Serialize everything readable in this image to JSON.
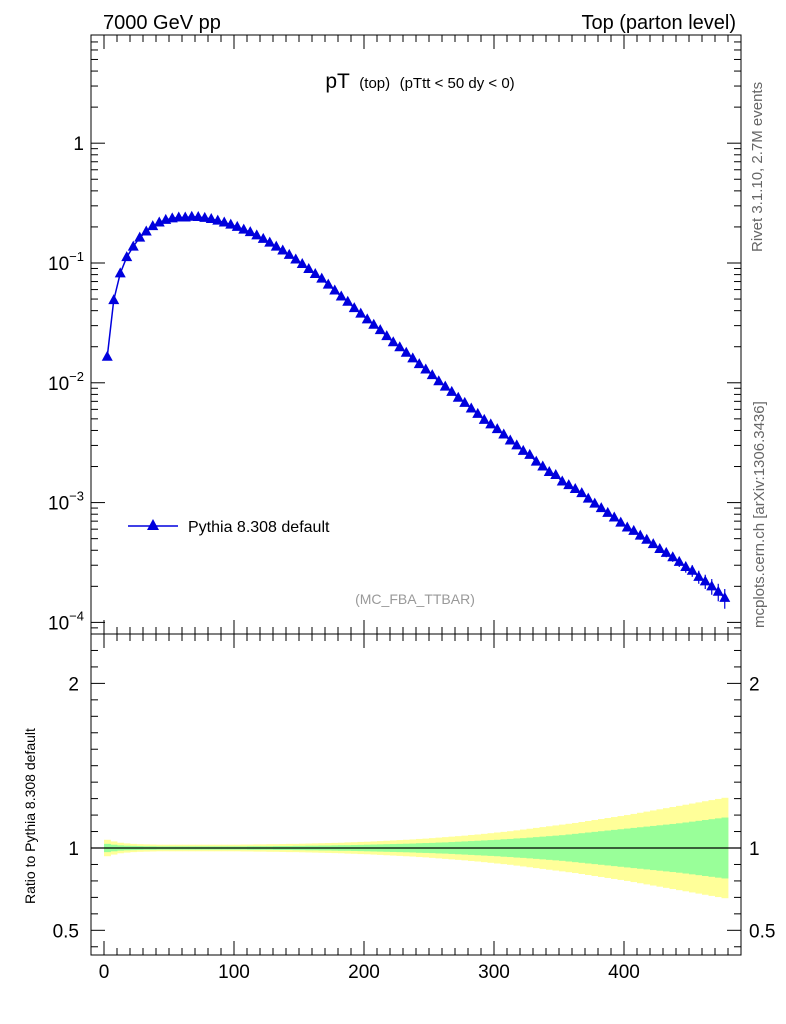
{
  "header": {
    "left": "7000 GeV pp",
    "right": "Top (parton level)"
  },
  "title": {
    "main": "pT",
    "sub1": "(top)",
    "sub2": "(pTtt < 50 dy < 0)"
  },
  "side": {
    "rivet": "Rivet 3.1.10,  2.7M events",
    "mcplots": "mcplots.cern.ch [arXiv:1306.3436]"
  },
  "analysis": "(MC_FBA_TTBAR)",
  "ratio_ylabel": "Ratio to Pythia 8.308 default",
  "colors": {
    "series": "#0000dd",
    "band_inner": "#99ff99",
    "band_outer": "#ffff99",
    "muted": "#999999",
    "side_text": "#666666"
  },
  "chart_data": [
    {
      "type": "line",
      "yscale": "log",
      "xlim": [
        -10,
        490
      ],
      "ylim": [
        8e-05,
        8
      ],
      "ytick_labels": [
        {
          "base": "1",
          "exp": ""
        },
        {
          "base": "10",
          "exp": "−1"
        },
        {
          "base": "10",
          "exp": "−2"
        },
        {
          "base": "10",
          "exp": "−3"
        },
        {
          "base": "10",
          "exp": "−4"
        }
      ],
      "ytick_values": [
        1,
        0.1,
        0.01,
        0.001,
        0.0001
      ],
      "legend": {
        "label": "Pythia 8.308 default",
        "position": "lower-left"
      },
      "series": [
        {
          "name": "Pythia 8.308 default",
          "x": [
            2.5,
            7.5,
            12.5,
            17.5,
            22.5,
            27.5,
            32.5,
            37.5,
            42.5,
            47.5,
            52.5,
            57.5,
            62.5,
            67.5,
            72.5,
            77.5,
            82.5,
            87.5,
            92.5,
            97.5,
            102.5,
            107.5,
            112.5,
            117.5,
            122.5,
            127.5,
            132.5,
            137.5,
            142.5,
            147.5,
            152.5,
            157.5,
            162.5,
            167.5,
            172.5,
            177.5,
            182.5,
            187.5,
            192.5,
            197.5,
            202.5,
            207.5,
            212.5,
            217.5,
            222.5,
            227.5,
            232.5,
            237.5,
            242.5,
            247.5,
            252.5,
            257.5,
            262.5,
            267.5,
            272.5,
            277.5,
            282.5,
            287.5,
            292.5,
            297.5,
            302.5,
            307.5,
            312.5,
            317.5,
            322.5,
            327.5,
            332.5,
            337.5,
            342.5,
            347.5,
            352.5,
            357.5,
            362.5,
            367.5,
            372.5,
            377.5,
            382.5,
            387.5,
            392.5,
            397.5,
            402.5,
            407.5,
            412.5,
            417.5,
            422.5,
            427.5,
            432.5,
            437.5,
            442.5,
            447.5,
            452.5,
            457.5,
            462.5,
            467.5,
            472.5,
            477.5
          ],
          "y": [
            0.0165,
            0.049,
            0.082,
            0.112,
            0.137,
            0.163,
            0.183,
            0.203,
            0.218,
            0.229,
            0.236,
            0.24,
            0.24,
            0.243,
            0.242,
            0.238,
            0.233,
            0.226,
            0.218,
            0.209,
            0.2,
            0.19,
            0.181,
            0.17,
            0.159,
            0.148,
            0.137,
            0.127,
            0.117,
            0.107,
            0.098,
            0.089,
            0.081,
            0.074,
            0.066,
            0.059,
            0.0525,
            0.0475,
            0.042,
            0.0378,
            0.0338,
            0.0305,
            0.0275,
            0.0245,
            0.0218,
            0.0198,
            0.0178,
            0.016,
            0.0143,
            0.0129,
            0.0116,
            0.0103,
            0.0093,
            0.0084,
            0.0075,
            0.0068,
            0.0061,
            0.0055,
            0.0049,
            0.0045,
            0.0041,
            0.0037,
            0.0033,
            0.003,
            0.0027,
            0.0025,
            0.0022,
            0.002,
            0.0018,
            0.0017,
            0.0015,
            0.0014,
            0.0013,
            0.0012,
            0.00108,
            0.00098,
            0.0009,
            0.00082,
            0.00075,
            0.00068,
            0.00062,
            0.00058,
            0.00053,
            0.00049,
            0.00045,
            0.00041,
            0.00038,
            0.00035,
            0.00032,
            0.00029,
            0.00027,
            0.00024,
            0.00022,
            0.0002,
            0.00018,
            0.00016
          ],
          "yerr": [
            0.0003,
            0.0006,
            0.0008,
            0.0009,
            0.001,
            0.0011,
            0.0011,
            0.0012,
            0.0012,
            0.0012,
            0.0012,
            0.0012,
            0.0012,
            0.0012,
            0.0012,
            0.0012,
            0.0012,
            0.0012,
            0.0012,
            0.0011,
            0.0011,
            0.0011,
            0.0011,
            0.001,
            0.001,
            0.001,
            0.001,
            0.0009,
            0.0009,
            0.0009,
            0.0008,
            0.0008,
            0.0007,
            0.0007,
            0.0007,
            0.0006,
            0.0006,
            0.0005,
            0.0005,
            0.0005,
            0.0004,
            0.0004,
            0.0004,
            0.0004,
            0.0003,
            0.0003,
            0.0003,
            0.0003,
            0.0003,
            0.0002,
            0.0002,
            0.0002,
            0.0002,
            0.0002,
            0.0002,
            0.00018,
            0.00016,
            0.00015,
            0.00014,
            0.00013,
            0.00012,
            0.00011,
            0.0001,
            0.0001,
            9e-05,
            9e-05,
            8e-05,
            8e-05,
            7e-05,
            7e-05,
            6e-05,
            6e-05,
            6e-05,
            5e-05,
            5e-05,
            5e-05,
            5e-05,
            4e-05,
            4e-05,
            4e-05,
            4e-05,
            4e-05,
            4e-05,
            3e-05,
            3e-05,
            3e-05,
            3e-05,
            3e-05,
            3e-05,
            3e-05,
            3e-05,
            3e-05,
            3e-05,
            3e-05,
            3e-05,
            3e-05
          ]
        }
      ]
    },
    {
      "type": "area",
      "ylabel": "Ratio to Pythia 8.308 default",
      "xlim": [
        -10,
        490
      ],
      "ylim": [
        0.35,
        2.3
      ],
      "xtick_values": [
        0,
        100,
        200,
        300,
        400
      ],
      "xtick_labels": [
        "0",
        "100",
        "200",
        "300",
        "400"
      ],
      "ytick_values": [
        2,
        1,
        0.5
      ],
      "ytick_labels": [
        "2",
        "1",
        "0.5"
      ],
      "reference_line": 1,
      "bands": {
        "x_edges_start": 0,
        "bin_width": 5,
        "inner_halfwidth": [
          0.025,
          0.02,
          0.016,
          0.014,
          0.013,
          0.012,
          0.011,
          0.011,
          0.01,
          0.01,
          0.01,
          0.01,
          0.01,
          0.01,
          0.01,
          0.01,
          0.01,
          0.01,
          0.01,
          0.01,
          0.01,
          0.01,
          0.011,
          0.011,
          0.011,
          0.011,
          0.012,
          0.012,
          0.012,
          0.013,
          0.013,
          0.014,
          0.014,
          0.015,
          0.015,
          0.016,
          0.017,
          0.017,
          0.018,
          0.019,
          0.02,
          0.021,
          0.022,
          0.023,
          0.024,
          0.025,
          0.026,
          0.027,
          0.029,
          0.03,
          0.031,
          0.033,
          0.034,
          0.036,
          0.038,
          0.04,
          0.042,
          0.044,
          0.046,
          0.048,
          0.05,
          0.053,
          0.055,
          0.058,
          0.06,
          0.063,
          0.066,
          0.069,
          0.072,
          0.075,
          0.078,
          0.082,
          0.086,
          0.09,
          0.094,
          0.098,
          0.102,
          0.106,
          0.11,
          0.114,
          0.118,
          0.122,
          0.126,
          0.13,
          0.134,
          0.138,
          0.142,
          0.146,
          0.15,
          0.155,
          0.16,
          0.165,
          0.17,
          0.175,
          0.18,
          0.185
        ],
        "outer_halfwidth": [
          0.05,
          0.04,
          0.032,
          0.028,
          0.025,
          0.023,
          0.022,
          0.021,
          0.02,
          0.02,
          0.02,
          0.02,
          0.02,
          0.02,
          0.02,
          0.02,
          0.02,
          0.02,
          0.02,
          0.02,
          0.02,
          0.021,
          0.021,
          0.022,
          0.022,
          0.023,
          0.023,
          0.024,
          0.025,
          0.025,
          0.026,
          0.027,
          0.028,
          0.029,
          0.03,
          0.031,
          0.032,
          0.034,
          0.035,
          0.037,
          0.038,
          0.04,
          0.042,
          0.044,
          0.046,
          0.048,
          0.05,
          0.052,
          0.055,
          0.057,
          0.06,
          0.063,
          0.066,
          0.069,
          0.072,
          0.075,
          0.079,
          0.082,
          0.086,
          0.09,
          0.094,
          0.098,
          0.102,
          0.107,
          0.112,
          0.117,
          0.122,
          0.127,
          0.132,
          0.137,
          0.142,
          0.147,
          0.152,
          0.158,
          0.164,
          0.17,
          0.176,
          0.182,
          0.188,
          0.194,
          0.2,
          0.207,
          0.214,
          0.221,
          0.228,
          0.235,
          0.242,
          0.249,
          0.256,
          0.263,
          0.27,
          0.277,
          0.284,
          0.291,
          0.298,
          0.305
        ]
      }
    }
  ]
}
